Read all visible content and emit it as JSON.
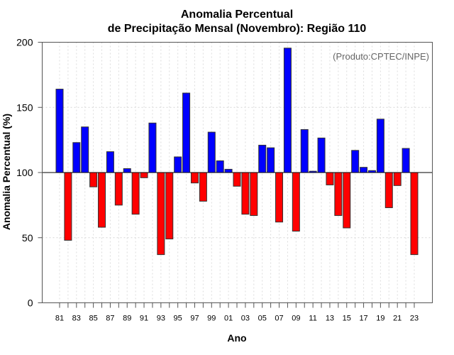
{
  "chart_data": {
    "type": "bar",
    "title_line1": "Anomalia Percentual",
    "title_line2": "de Precipitação Mensal (Novembro): Região 110",
    "xlabel": "Ano",
    "ylabel": "Anomalia Percentual (%)",
    "annotation": "(Produto:CPTEC/INPE)",
    "ylim": [
      0,
      200
    ],
    "yticks": [
      0,
      50,
      100,
      150,
      200
    ],
    "baseline": 100,
    "grid": true,
    "colors": {
      "above": "#0000FF",
      "below": "#FF0000",
      "outline": "#333333"
    },
    "x_tick_labels": [
      "81",
      "83",
      "85",
      "87",
      "89",
      "91",
      "93",
      "95",
      "97",
      "99",
      "01",
      "03",
      "05",
      "07",
      "09",
      "11",
      "13",
      "15",
      "17",
      "19",
      "21",
      "23"
    ],
    "categories": [
      1981,
      1982,
      1983,
      1984,
      1985,
      1986,
      1987,
      1988,
      1989,
      1990,
      1991,
      1992,
      1993,
      1994,
      1995,
      1996,
      1997,
      1998,
      1999,
      2000,
      2001,
      2002,
      2003,
      2004,
      2005,
      2006,
      2007,
      2008,
      2009,
      2010,
      2011,
      2012,
      2013,
      2014,
      2015,
      2016,
      2017,
      2018,
      2019,
      2020,
      2021,
      2022,
      2023
    ],
    "values": [
      164,
      48,
      123,
      135,
      89,
      58,
      116,
      75,
      103,
      68,
      96,
      138,
      37,
      49,
      112,
      161,
      92,
      78,
      131,
      109,
      102.5,
      89.5,
      68,
      67,
      121,
      119,
      62,
      195.5,
      55,
      133,
      101,
      126.5,
      90.5,
      67,
      57.5,
      117,
      104,
      101.5,
      141,
      73,
      90,
      118.5,
      37
    ]
  }
}
